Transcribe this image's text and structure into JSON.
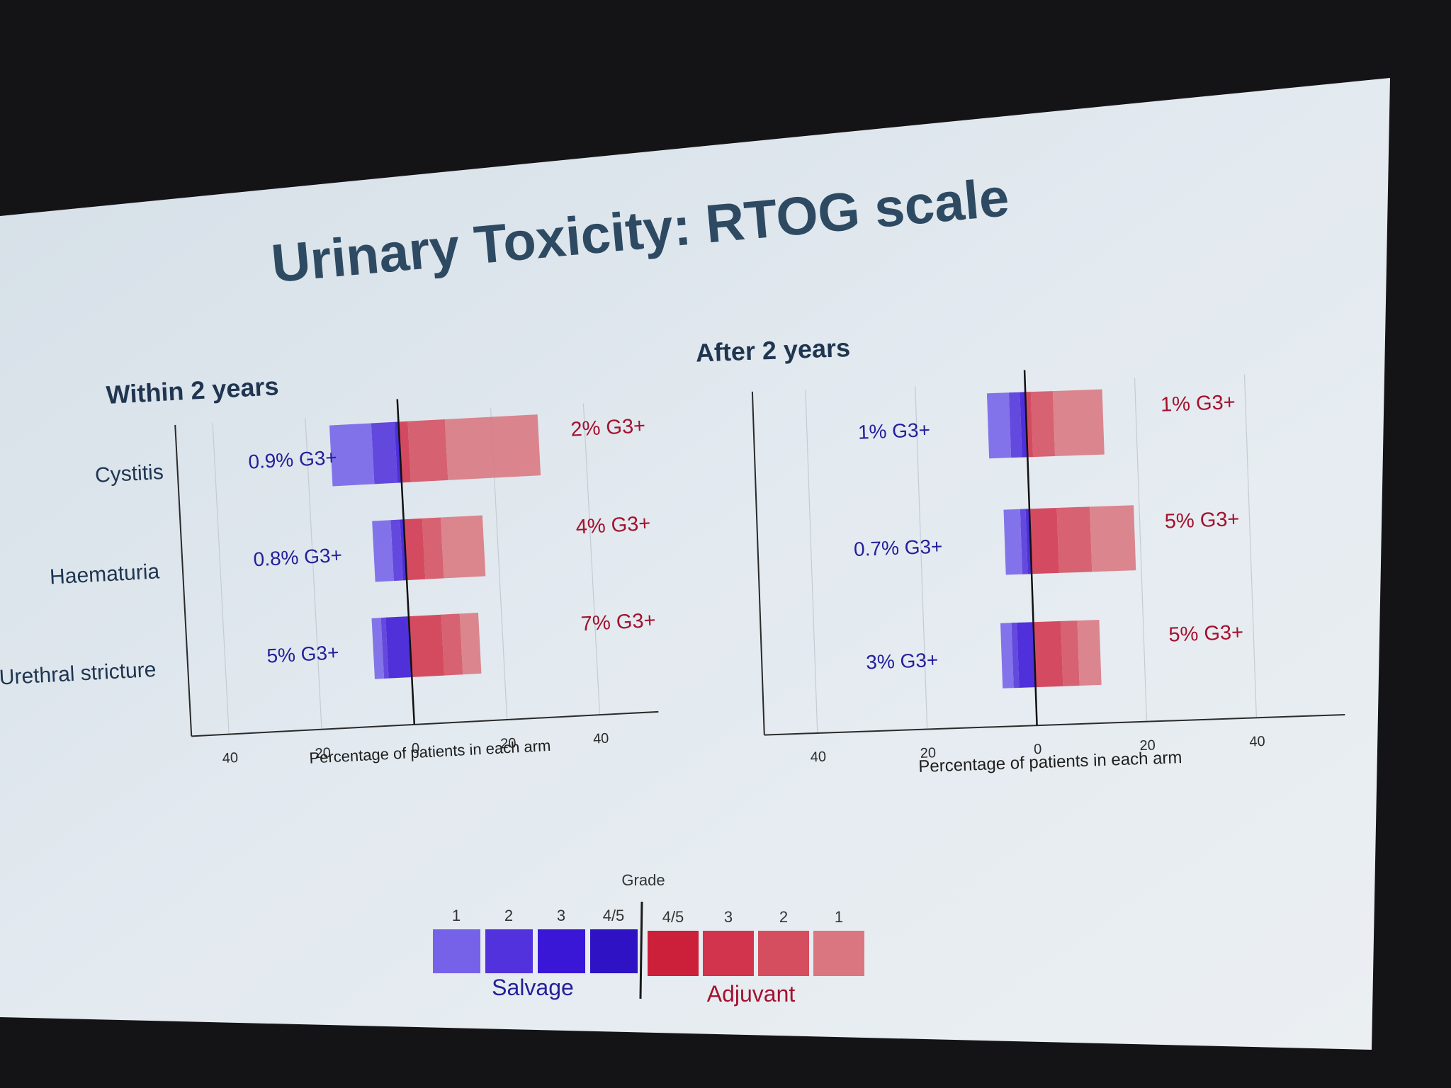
{
  "title": "Urinary Toxicity: RTOG scale",
  "colors": {
    "salvage": [
      "#7562e8",
      "#5232dc",
      "#3a16d6",
      "#2f12c4"
    ],
    "adjuvant": [
      "#cc1f3a",
      "#d1344c",
      "#d54e60",
      "#da7680"
    ],
    "salvage_text": "#24209a",
    "adjuvant_text": "#a3122e",
    "screen": "#dfe7ee",
    "frame": "#141416"
  },
  "legend": {
    "title": "Grade",
    "salvage_grades": [
      "1",
      "2",
      "3",
      "4/5"
    ],
    "adjuvant_grades": [
      "4/5",
      "3",
      "2",
      "1"
    ],
    "salvage_label": "Salvage",
    "adjuvant_label": "Adjuvant"
  },
  "chart_data": [
    {
      "type": "bar",
      "orientation": "horizontal-diverging",
      "title": "Within 2 years",
      "xlabel": "Percentage of patients in each arm",
      "xlim": [
        -50,
        50
      ],
      "xticks": [
        "40",
        "20",
        "0",
        "20",
        "40"
      ],
      "xtick_values": [
        -40,
        -20,
        0,
        20,
        40
      ],
      "grid": true,
      "categories": [
        "Cystitis",
        "Haematuria",
        "Urethral stricture"
      ],
      "salvage": {
        "grade_1": [
          9,
          4,
          2
        ],
        "grade_2": [
          5,
          2,
          1
        ],
        "grade_3": [
          0.9,
          0.8,
          5
        ],
        "grade_4_5": [
          0,
          0,
          0
        ],
        "annotations": [
          "0.9% G3+",
          "0.8% G3+",
          "5% G3+"
        ]
      },
      "adjuvant": {
        "grade_4_5": [
          0,
          0,
          0
        ],
        "grade_3": [
          2,
          4,
          7
        ],
        "grade_2": [
          8,
          4,
          4
        ],
        "grade_1": [
          20,
          9,
          4
        ],
        "annotations": [
          "2% G3+",
          "4% G3+",
          "7% G3+"
        ]
      }
    },
    {
      "type": "bar",
      "orientation": "horizontal-diverging",
      "title": "After 2 years",
      "xlabel": "Percentage of patients in each arm",
      "xlim": [
        -50,
        50
      ],
      "xticks": [
        "40",
        "20",
        "0",
        "20",
        "40"
      ],
      "xtick_values": [
        -40,
        -20,
        0,
        20,
        40
      ],
      "grid": true,
      "categories": [
        "Cystitis",
        "Haematuria",
        "Urethral stricture"
      ],
      "salvage": {
        "grade_1": [
          4,
          3,
          2
        ],
        "grade_2": [
          2,
          1,
          1
        ],
        "grade_3": [
          1,
          0.7,
          3
        ],
        "grade_4_5": [
          0,
          0,
          0
        ],
        "annotations": [
          "1% G3+",
          "0.7% G3+",
          "3% G3+"
        ]
      },
      "adjuvant": {
        "grade_4_5": [
          0,
          0,
          0
        ],
        "grade_3": [
          1,
          5,
          5
        ],
        "grade_2": [
          4,
          6,
          3
        ],
        "grade_1": [
          9,
          8,
          4
        ],
        "annotations": [
          "1% G3+",
          "5% G3+",
          "5% G3+"
        ]
      }
    }
  ]
}
